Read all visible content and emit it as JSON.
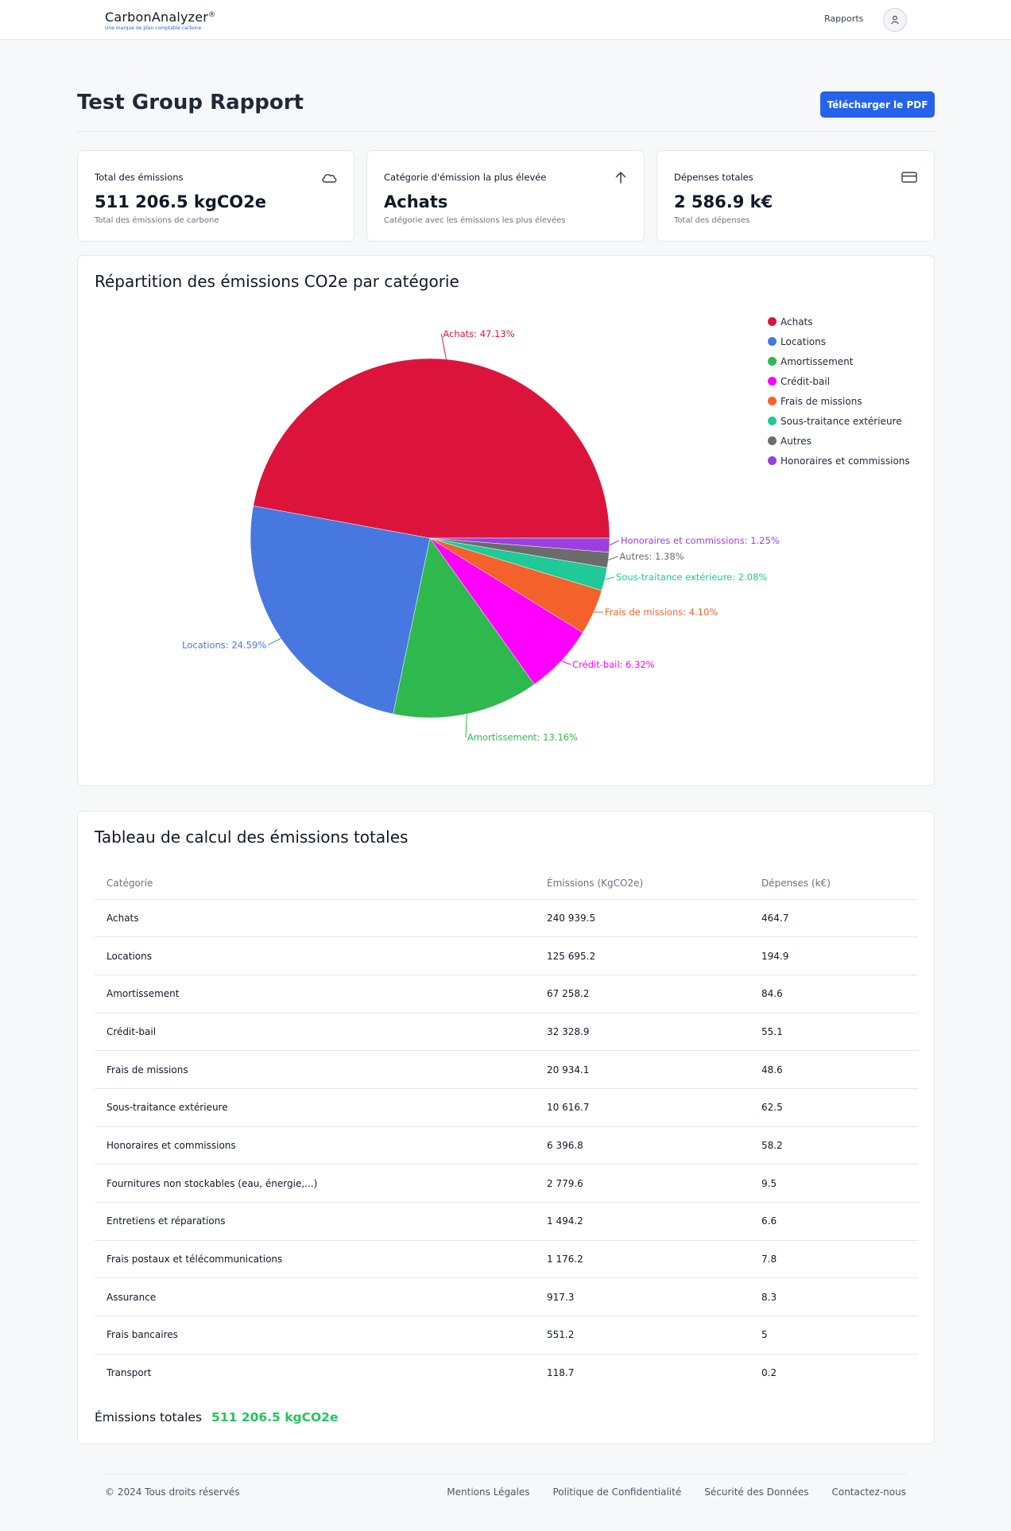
{
  "header": {
    "brand_name": "CarbonAnalyzer",
    "brand_mark": "®",
    "brand_tagline": "Une marque de plan comptable carbone",
    "nav_reports": "Rapports"
  },
  "page": {
    "title": "Test Group Rapport",
    "download_label": "Télécharger le PDF"
  },
  "stats": [
    {
      "label": "Total des émissions",
      "value": "511 206.5 kgCO2e",
      "sub": "Total des émissions de carbone",
      "icon": "cloud-icon"
    },
    {
      "label": "Catégorie d'émission la plus élevée",
      "value": "Achats",
      "sub": "Catégorie avec les émissions les plus élevées",
      "icon": "arrow-up-icon"
    },
    {
      "label": "Dépenses totales",
      "value": "2 586.9 k€",
      "sub": "Total des dépenses",
      "icon": "credit-card-icon"
    }
  ],
  "pie_section": {
    "title": "Répartition des émissions CO2e par catégorie"
  },
  "chart_data": {
    "type": "pie",
    "slices": [
      {
        "label": "Achats",
        "percent": 47.13,
        "text": "Achats: 47.13%",
        "color": "#dc143c"
      },
      {
        "label": "Locations",
        "percent": 24.59,
        "text": "Locations: 24.59%",
        "color": "#4678e0"
      },
      {
        "label": "Amortissement",
        "percent": 13.16,
        "text": "Amortissement: 13.16%",
        "color": "#2fb84e"
      },
      {
        "label": "Crédit-bail",
        "percent": 6.32,
        "text": "Crédit-bail: 6.32%",
        "color": "#ff00ff"
      },
      {
        "label": "Frais de missions",
        "percent": 4.1,
        "text": "Frais de missions: 4.10%",
        "color": "#f4612a"
      },
      {
        "label": "Sous-traitance extérieure",
        "percent": 2.08,
        "text": "Sous-traitance extérieure: 2.08%",
        "color": "#20c997"
      },
      {
        "label": "Autres",
        "percent": 1.38,
        "text": "Autres: 1.38%",
        "color": "#6b6b6b"
      },
      {
        "label": "Honoraires et commissions",
        "percent": 1.25,
        "text": "Honoraires et commissions: 1.25%",
        "color": "#9b3fe0"
      }
    ],
    "legend_position": "top-right"
  },
  "table_section": {
    "title": "Tableau de calcul des émissions totales",
    "columns": [
      "Catégorie",
      "Émissions (KgCO2e)",
      "Dépenses (k€)"
    ],
    "rows": [
      [
        "Achats",
        "240 939.5",
        "464.7"
      ],
      [
        "Locations",
        "125 695.2",
        "194.9"
      ],
      [
        "Amortissement",
        "67 258.2",
        "84.6"
      ],
      [
        "Crédit-bail",
        "32 328.9",
        "55.1"
      ],
      [
        "Frais de missions",
        "20 934.1",
        "48.6"
      ],
      [
        "Sous-traitance extérieure",
        "10 616.7",
        "62.5"
      ],
      [
        "Honoraires et commissions",
        "6 396.8",
        "58.2"
      ],
      [
        "Fournitures non stockables (eau, énergie,...)",
        "2 779.6",
        "9.5"
      ],
      [
        "Entretiens et réparations",
        "1 494.2",
        "6.6"
      ],
      [
        "Frais postaux et télécommunications",
        "1 176.2",
        "7.8"
      ],
      [
        "Assurance",
        "917.3",
        "8.3"
      ],
      [
        "Frais bancaires",
        "551.2",
        "5"
      ],
      [
        "Transport",
        "118.7",
        "0.2"
      ]
    ],
    "total_label": "Émissions totales",
    "total_value": "511 206.5 kgCO2e"
  },
  "footer": {
    "copyright": "© 2024 Tous droits réservés",
    "links": [
      "Mentions Légales",
      "Politique de Confidentialité",
      "Sécurité des Données",
      "Contactez-nous"
    ]
  }
}
